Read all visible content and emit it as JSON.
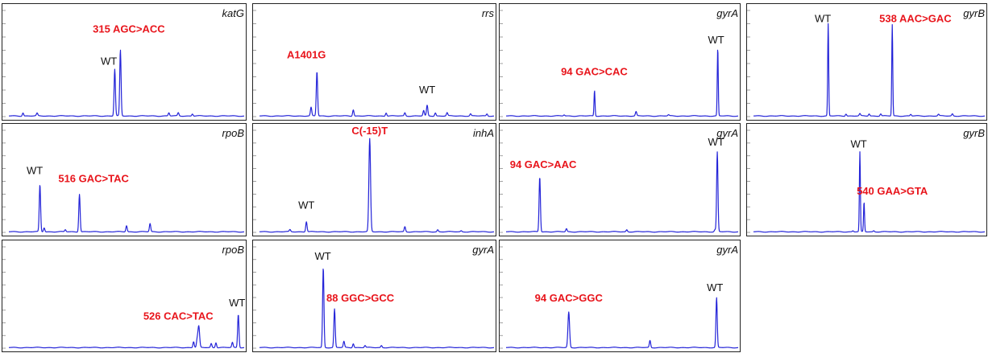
{
  "chart_data": [
    {
      "type": "line",
      "gene": "katG",
      "wt_label": "WT",
      "mut_label": "315 AGC>ACC",
      "peaks": [
        {
          "x": 0.45,
          "h": 0.44,
          "w": 0.004
        },
        {
          "x": 0.474,
          "h": 0.62,
          "w": 0.004
        }
      ],
      "minor": [
        [
          0.06,
          0.03
        ],
        [
          0.12,
          0.025
        ],
        [
          0.68,
          0.03
        ],
        [
          0.72,
          0.03
        ],
        [
          0.78,
          0.02
        ]
      ],
      "wt_at": [
        0.425,
        0.46
      ],
      "mut_at": [
        0.51,
        0.76
      ]
    },
    {
      "type": "line",
      "gene": "rrs",
      "wt_label": "WT",
      "mut_label": "A1401G",
      "peaks": [
        {
          "x": 0.245,
          "h": 0.42,
          "w": 0.004
        },
        {
          "x": 0.715,
          "h": 0.1,
          "w": 0.004
        }
      ],
      "minor": [
        [
          0.22,
          0.08
        ],
        [
          0.4,
          0.06
        ],
        [
          0.54,
          0.03
        ],
        [
          0.62,
          0.03
        ],
        [
          0.7,
          0.05
        ],
        [
          0.75,
          0.03
        ],
        [
          0.8,
          0.03
        ],
        [
          0.9,
          0.02
        ],
        [
          0.97,
          0.02
        ]
      ],
      "wt_at": [
        0.715,
        0.19
      ],
      "mut_at": [
        0.2,
        0.52
      ]
    },
    {
      "type": "line",
      "gene": "gyrA",
      "wt_label": "WT",
      "mut_label": "94 GAC>CAC",
      "peaks": [
        {
          "x": 0.381,
          "h": 0.24,
          "w": 0.003
        },
        {
          "x": 0.912,
          "h": 0.64,
          "w": 0.003
        }
      ],
      "minor": [
        [
          0.56,
          0.04
        ],
        [
          0.25,
          0.01
        ],
        [
          0.7,
          0.01
        ]
      ],
      "wt_at": [
        0.905,
        0.66
      ],
      "mut_at": [
        0.38,
        0.36
      ]
    },
    {
      "type": "line",
      "gene": "gyrB",
      "wt_label": "WT",
      "mut_label": "538 AAC>GAC",
      "peaks": [
        {
          "x": 0.323,
          "h": 0.87,
          "w": 0.003
        },
        {
          "x": 0.6,
          "h": 0.86,
          "w": 0.003
        }
      ],
      "minor": [
        [
          0.4,
          0.02
        ],
        [
          0.46,
          0.02
        ],
        [
          0.5,
          0.02
        ],
        [
          0.55,
          0.02
        ],
        [
          0.68,
          0.015
        ],
        [
          0.8,
          0.015
        ],
        [
          0.86,
          0.02
        ]
      ],
      "wt_at": [
        0.3,
        0.86
      ],
      "mut_at": [
        0.7,
        0.86
      ]
    },
    {
      "type": "line",
      "gene": "rpoB",
      "wt_label": "WT",
      "mut_label": "516 GAC>TAC",
      "peaks": [
        {
          "x": 0.132,
          "h": 0.46,
          "w": 0.004
        },
        {
          "x": 0.3,
          "h": 0.37,
          "w": 0.004
        }
      ],
      "minor": [
        [
          0.15,
          0.04
        ],
        [
          0.24,
          0.02
        ],
        [
          0.5,
          0.06
        ],
        [
          0.6,
          0.08
        ]
      ],
      "wt_at": [
        0.11,
        0.54
      ],
      "mut_at": [
        0.36,
        0.46
      ]
    },
    {
      "type": "line",
      "gene": "inhA",
      "wt_label": "WT",
      "mut_label": "C(-15)T",
      "peaks": [
        {
          "x": 0.2,
          "h": 0.1,
          "w": 0.004
        },
        {
          "x": 0.47,
          "h": 0.91,
          "w": 0.005
        }
      ],
      "minor": [
        [
          0.13,
          0.02
        ],
        [
          0.62,
          0.05
        ],
        [
          0.76,
          0.02
        ],
        [
          0.86,
          0.01
        ]
      ],
      "wt_at": [
        0.2,
        0.2
      ],
      "mut_at": [
        0.47,
        0.93
      ]
    },
    {
      "type": "line",
      "gene": "gyrA",
      "wt_label": "WT",
      "mut_label": "94 GAC>AAC",
      "peaks": [
        {
          "x": 0.145,
          "h": 0.54,
          "w": 0.004
        },
        {
          "x": 0.91,
          "h": 0.78,
          "w": 0.004
        }
      ],
      "minor": [
        [
          0.26,
          0.03
        ],
        [
          0.52,
          0.02
        ],
        [
          0.9,
          0.02
        ]
      ],
      "wt_at": [
        0.905,
        0.82
      ],
      "mut_at": [
        0.16,
        0.6
      ]
    },
    {
      "type": "line",
      "gene": "gyrB",
      "wt_label": "WT",
      "mut_label": "540 GAA>GTA",
      "peaks": [
        {
          "x": 0.46,
          "h": 0.78,
          "w": 0.003
        },
        {
          "x": 0.478,
          "h": 0.29,
          "w": 0.003
        }
      ],
      "minor": [
        [
          0.43,
          0.01
        ],
        [
          0.52,
          0.01
        ]
      ],
      "wt_at": [
        0.455,
        0.8
      ],
      "mut_at": [
        0.6,
        0.34
      ]
    },
    {
      "type": "line",
      "gene": "rpoB",
      "wt_label": "WT",
      "mut_label": "526 CAC>TAC",
      "peaks": [
        {
          "x": 0.807,
          "h": 0.21,
          "w": 0.005
        },
        {
          "x": 0.975,
          "h": 0.33,
          "w": 0.004
        }
      ],
      "minor": [
        [
          0.785,
          0.06
        ],
        [
          0.8,
          0.07
        ],
        [
          0.86,
          0.04
        ],
        [
          0.88,
          0.05
        ],
        [
          0.95,
          0.05
        ]
      ],
      "wt_at": [
        0.97,
        0.38
      ],
      "mut_at": [
        0.72,
        0.25
      ]
    },
    {
      "type": "line",
      "gene": "gyrA",
      "wt_label": "WT",
      "mut_label": "88 GGC>GCC",
      "peaks": [
        {
          "x": 0.272,
          "h": 0.79,
          "w": 0.004
        },
        {
          "x": 0.32,
          "h": 0.38,
          "w": 0.004
        }
      ],
      "minor": [
        [
          0.36,
          0.06
        ],
        [
          0.4,
          0.04
        ],
        [
          0.45,
          0.02
        ],
        [
          0.52,
          0.02
        ]
      ],
      "wt_at": [
        0.27,
        0.84
      ],
      "mut_at": [
        0.43,
        0.43
      ]
    },
    {
      "type": "line",
      "gene": "gyrA",
      "wt_label": "WT",
      "mut_label": "94 GAC>GGC",
      "peaks": [
        {
          "x": 0.27,
          "h": 0.35,
          "w": 0.005
        },
        {
          "x": 0.907,
          "h": 0.49,
          "w": 0.004
        }
      ],
      "minor": [
        [
          0.62,
          0.07
        ]
      ],
      "wt_at": [
        0.9,
        0.53
      ],
      "mut_at": [
        0.27,
        0.43
      ]
    }
  ]
}
